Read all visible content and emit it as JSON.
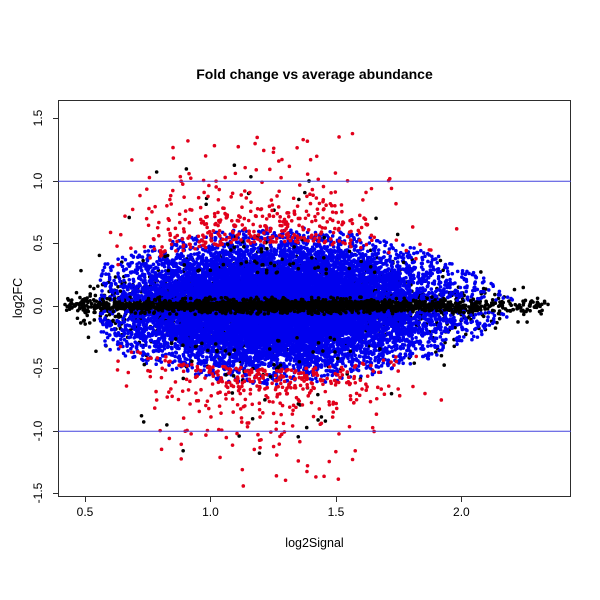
{
  "figure": {
    "title": "Fold change vs average abundance",
    "background": "#ffffff",
    "frame_color": "#2d2d2d"
  },
  "chart_data": {
    "type": "scatter",
    "subtype": "MA-plot",
    "title": "Fold change vs average abundance",
    "xlabel": "log2Signal",
    "ylabel": "log2FC",
    "xlim": [
      0.392,
      2.439
    ],
    "ylim": [
      -1.533,
      1.646
    ],
    "x_ticks": [
      0.5,
      1.0,
      1.5,
      2.0
    ],
    "x_tick_labels": [
      "0.5",
      "1.0",
      "1.5",
      "2.0"
    ],
    "y_ticks": [
      1.5,
      1.0,
      0.5,
      0.0,
      -0.5,
      -1.0,
      -1.5
    ],
    "y_tick_labels": [
      "1.5",
      "1.0",
      "0.5",
      "0.0",
      "-0.5",
      "-1.0",
      "-1.5"
    ],
    "grid": false,
    "legend": null,
    "reference_lines": {
      "y": [
        1.0,
        -1.0
      ],
      "color": "#4343DE",
      "width": 1
    },
    "colors": {
      "nonsig": "#000000",
      "moderate": "#0000EE",
      "high_fc": "#E2001B"
    },
    "point_radius_px": 1.8,
    "generator": {
      "seed": 20240601,
      "layers": [
        {
          "name": "black-scatter",
          "kind": "band",
          "color": "#000000",
          "n": 1500,
          "x": {
            "mu": 1.25,
            "sd": 0.4,
            "lo": 0.45,
            "hi": 2.3,
            "mix_sd": 0.4,
            "mix_frac": 0
          },
          "y": {
            "sd": 0.17,
            "base": 0.3,
            "lens": {
              "c": 1.3,
              "w": 1.1,
              "p": 0.6
            },
            "max": 0.8
          }
        },
        {
          "name": "black-core",
          "kind": "band",
          "color": "#000000",
          "n": 2200,
          "x": {
            "mu": 1.27,
            "sd": 0.32,
            "lo": 0.42,
            "hi": 2.36,
            "mix_sd": 0.6,
            "mix_frac": 0.3
          },
          "y": {
            "sd": 0.045,
            "base": 0.45,
            "lens": {
              "c": 1.3,
              "w": 1.25,
              "p": 0.5
            },
            "max": 0.13
          }
        },
        {
          "name": "blue-cloud",
          "kind": "cloud",
          "color": "#0000EE",
          "n": 12500,
          "x": {
            "mu": 1.28,
            "sd": 0.3,
            "lo": 0.56,
            "hi": 2.24,
            "mix_sd": 0.5,
            "mix_frac": 0.15
          },
          "y": {
            "sd": 0.24,
            "min": 0.04,
            "env": {
              "a": 0.63,
              "c": 1.28,
              "w": 0.95,
              "p": 0.8
            }
          }
        },
        {
          "name": "black-centerline",
          "kind": "band",
          "color": "#000000",
          "n": 1400,
          "x": {
            "mu": 1.27,
            "sd": 0.34,
            "lo": 0.42,
            "hi": 2.36,
            "mix_sd": 0.62,
            "mix_frac": 0.3
          },
          "y": {
            "sd": 0.03,
            "base": 0.5,
            "lens": {
              "c": 1.3,
              "w": 1.25,
              "p": 0.5
            },
            "max": 0.07
          }
        },
        {
          "name": "black-outliers",
          "kind": "shell",
          "color": "#000000",
          "n": 130,
          "x": {
            "mu": 1.22,
            "sd": 0.28,
            "lo": 0.6,
            "hi": 2.0,
            "mix_sd": 0.28,
            "mix_frac": 0
          },
          "y": {
            "shell_min": 0.25,
            "exp_mean": 0.3,
            "max": 1.3
          }
        },
        {
          "name": "red-shell",
          "kind": "red",
          "color": "#E2001B",
          "n": 810,
          "x": {
            "mu": 1.2,
            "sd": 0.27,
            "lo": 0.6,
            "hi": 2.05,
            "mix_sd": 0.27,
            "mix_frac": 0
          },
          "y": {
            "inner_frac": 0.8,
            "inner_env": {
              "a": 0.63,
              "c": 1.28,
              "w": 0.95,
              "p": 0.8
            },
            "exp_mean": 0.23,
            "outer_env": {
              "a": 1.58,
              "c": 1.22,
              "w": 1.0,
              "p": 0.8
            },
            "max": 1.52
          }
        }
      ]
    }
  }
}
